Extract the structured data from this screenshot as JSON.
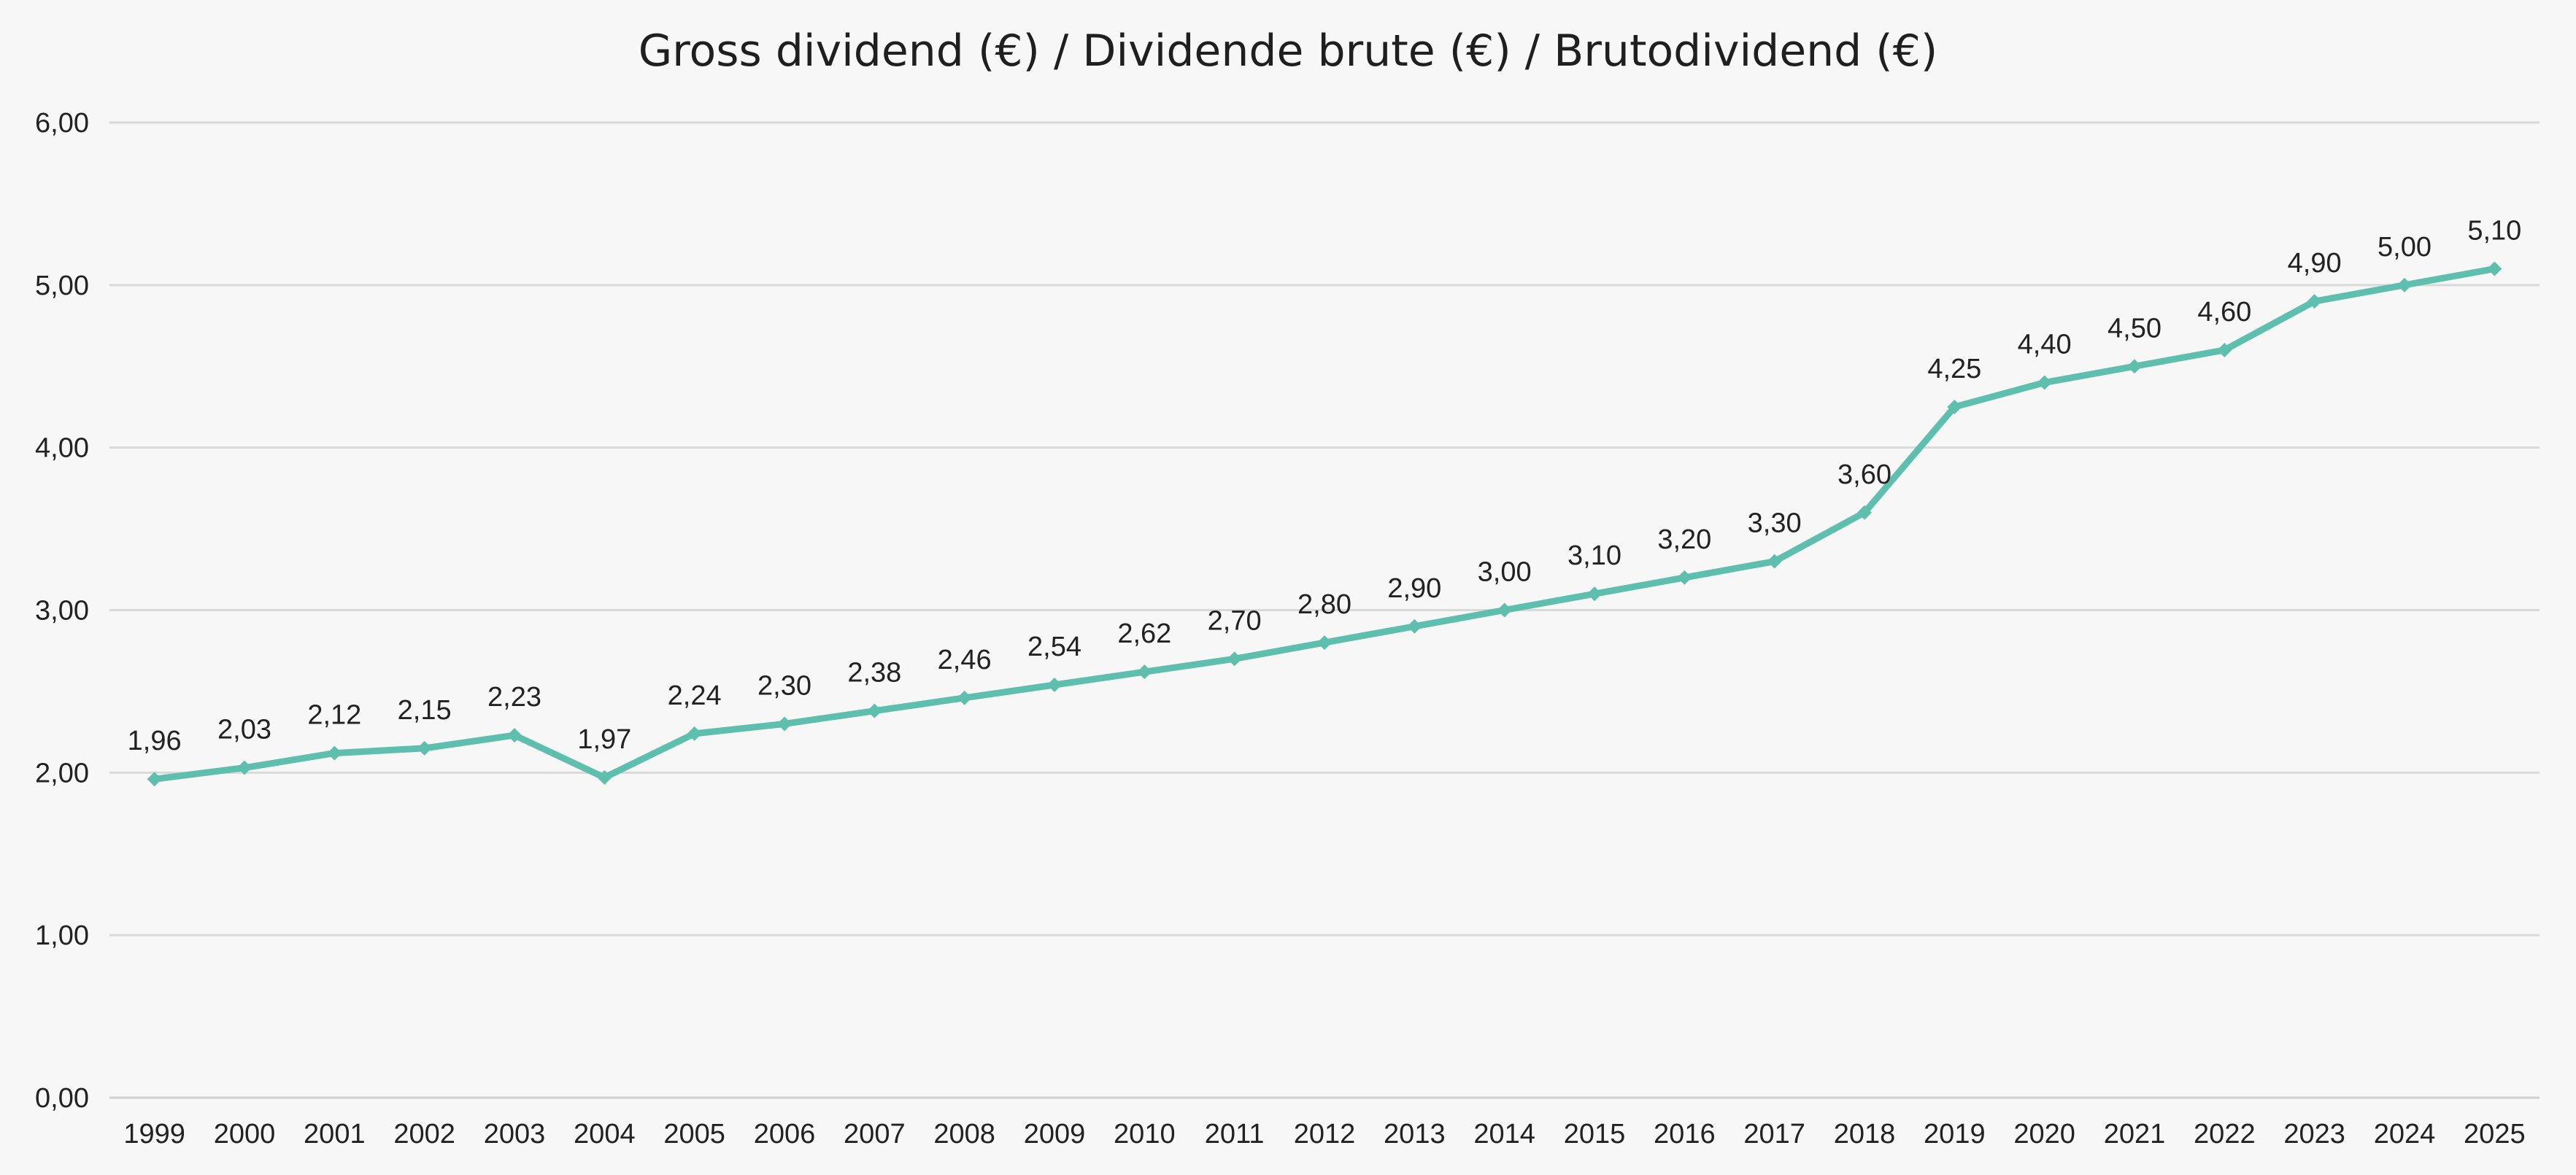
{
  "chart_data": {
    "type": "line",
    "title": "Gross dividend (€) / Dividende brute (€) / Brutodividend (€)",
    "xlabel": "",
    "ylabel": "",
    "categories": [
      "1999",
      "2000",
      "2001",
      "2002",
      "2003",
      "2004",
      "2005",
      "2006",
      "2007",
      "2008",
      "2009",
      "2010",
      "2011",
      "2012",
      "2013",
      "2014",
      "2015",
      "2016",
      "2017",
      "2018",
      "2019",
      "2020",
      "2021",
      "2022",
      "2023",
      "2024",
      "2025"
    ],
    "values": [
      1.96,
      2.03,
      2.12,
      2.15,
      2.23,
      1.97,
      2.24,
      2.3,
      2.38,
      2.46,
      2.54,
      2.62,
      2.7,
      2.8,
      2.9,
      3.0,
      3.1,
      3.2,
      3.3,
      3.6,
      4.25,
      4.4,
      4.5,
      4.6,
      4.9,
      5.0,
      5.1
    ],
    "data_labels": [
      "1,96",
      "2,03",
      "2,12",
      "2,15",
      "2,23",
      "1,97",
      "2,24",
      "2,30",
      "2,38",
      "2,46",
      "2,54",
      "2,62",
      "2,70",
      "2,80",
      "2,90",
      "3,00",
      "3,10",
      "3,20",
      "3,30",
      "3,60",
      "4,25",
      "4,40",
      "4,50",
      "4,60",
      "4,90",
      "5,00",
      "5,10"
    ],
    "y_ticks": [
      0,
      1,
      2,
      3,
      4,
      5,
      6
    ],
    "y_tick_labels": [
      "0,00",
      "1,00",
      "2,00",
      "3,00",
      "4,00",
      "5,00",
      "6,00"
    ],
    "ylim": [
      0,
      6
    ],
    "grid": true,
    "legend": "none",
    "marker": "diamond",
    "colors": {
      "series": "#5fbfae",
      "background": "#f7f7f7",
      "grid": "#d9d9d9",
      "text": "#222222"
    }
  }
}
